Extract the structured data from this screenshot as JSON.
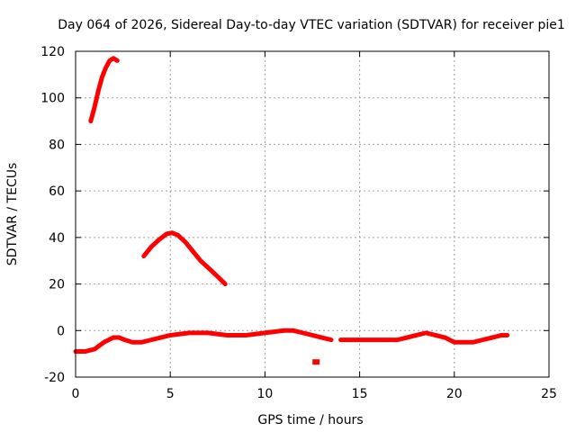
{
  "chart_data": {
    "type": "line",
    "title": "Day 064 of 2026, Sidereal Day-to-day VTEC variation (SDTVAR) for receiver pie1",
    "xlabel": "GPS time / hours",
    "ylabel": "SDTVAR / TECUs",
    "xlim": [
      0,
      25
    ],
    "ylim": [
      -20,
      120
    ],
    "xticks": [
      0,
      5,
      10,
      15,
      20,
      25
    ],
    "yticks": [
      -20,
      0,
      20,
      40,
      60,
      80,
      100,
      120
    ],
    "grid": true,
    "color": "#ff0000",
    "series": [
      {
        "name": "segment-1",
        "x": [
          0.8,
          1.0,
          1.2,
          1.4,
          1.6,
          1.8,
          2.0,
          2.2
        ],
        "y": [
          90,
          96,
          103,
          109,
          113,
          116,
          117,
          116
        ]
      },
      {
        "name": "segment-2",
        "x": [
          3.6,
          4.0,
          4.4,
          4.8,
          5.1,
          5.4,
          5.8,
          6.2,
          6.6,
          7.0,
          7.4,
          7.9
        ],
        "y": [
          32,
          36,
          39,
          41.5,
          42,
          41,
          38,
          34,
          30,
          27,
          24,
          20
        ]
      },
      {
        "name": "segment-3",
        "x": [
          0,
          0.5,
          1.0,
          1.5,
          2.0,
          2.3,
          2.6,
          3.0,
          3.5,
          4.0,
          4.5,
          5.0,
          6.0,
          7.0,
          8.0,
          9.0,
          10.0,
          11.0,
          11.5,
          12.0,
          12.5,
          13.0,
          13.5
        ],
        "y": [
          -9,
          -9,
          -8,
          -5,
          -3,
          -3,
          -4,
          -5,
          -5,
          -4,
          -3,
          -2,
          -1,
          -1,
          -2,
          -2,
          -1,
          0,
          0,
          -1,
          -2,
          -3,
          -4
        ]
      },
      {
        "name": "segment-4",
        "x": [
          14.0,
          15.0,
          16.0,
          17.0,
          17.5,
          18.0,
          18.5,
          19.0,
          19.5,
          20.0,
          20.5,
          21.0,
          21.5,
          22.0,
          22.5,
          22.8
        ],
        "y": [
          -4,
          -4,
          -4,
          -4,
          -3,
          -2,
          -1,
          -2,
          -3,
          -5,
          -5,
          -5,
          -4,
          -3,
          -2,
          -2
        ]
      },
      {
        "name": "outlier",
        "x": [
          12.7
        ],
        "y": [
          -13.5
        ],
        "marker_only": true
      }
    ]
  }
}
